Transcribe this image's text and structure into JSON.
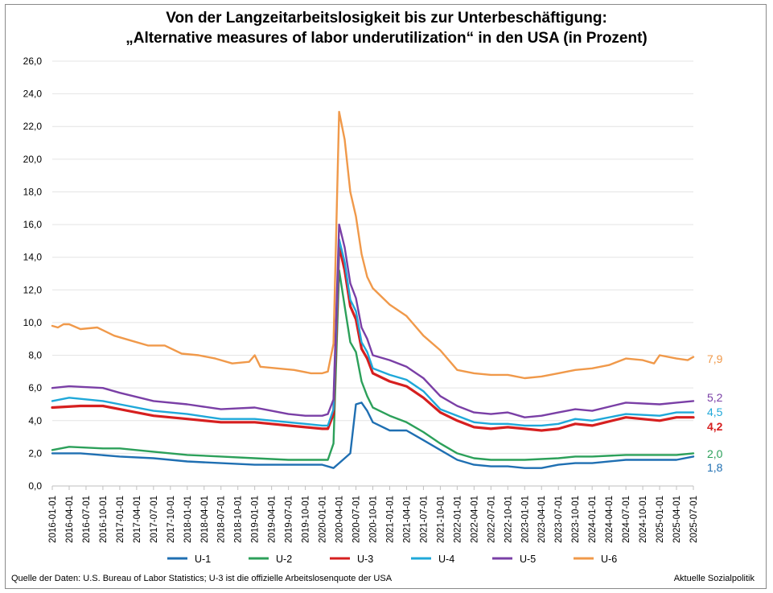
{
  "title_line1": "Von der Langzeitarbeitslosigkeit bis zur Unterbeschäftigung:",
  "title_line2": "„Alternative measures of labor underutilization“ in den USA (in Prozent)",
  "source": "Quelle der Daten: U.S. Bureau of Labor Statistics; U-3 ist die offizielle Arbeitslosenquote der USA",
  "brand": "Aktuelle Sozialpolitik",
  "chart_data": {
    "type": "line",
    "title": "Von der Langzeitarbeitslosigkeit bis zur Unterbeschäftigung: „Alternative measures of labor underutilization“ in den USA (in Prozent)",
    "xlabel": "",
    "ylabel": "",
    "ylim": [
      0,
      26
    ],
    "yticks": [
      "0,0",
      "2,0",
      "4,0",
      "6,0",
      "8,0",
      "10,0",
      "12,0",
      "14,0",
      "16,0",
      "18,0",
      "20,0",
      "22,0",
      "24,0",
      "26,0"
    ],
    "grid": true,
    "legend_position": "bottom",
    "x_start": "2016-01-01",
    "x_end": "2025-07-01",
    "x_ticks": [
      "2016-01-01",
      "2016-04-01",
      "2016-07-01",
      "2016-10-01",
      "2017-01-01",
      "2017-04-01",
      "2017-07-01",
      "2017-10-01",
      "2018-01-01",
      "2018-04-01",
      "2018-07-01",
      "2018-10-01",
      "2019-01-01",
      "2019-04-01",
      "2019-07-01",
      "2019-10-01",
      "2020-01-01",
      "2020-04-01",
      "2020-07-01",
      "2020-10-01",
      "2021-01-01",
      "2021-04-01",
      "2021-07-01",
      "2021-10-01",
      "2022-01-01",
      "2022-04-01",
      "2022-07-01",
      "2022-10-01",
      "2023-01-01",
      "2023-04-01",
      "2023-07-01",
      "2023-10-01",
      "2024-01-01",
      "2024-04-01",
      "2024-07-01",
      "2024-10-01",
      "2025-01-01",
      "2025-04-01",
      "2025-07-01"
    ],
    "series": [
      {
        "name": "U-1",
        "color": "#1f6fb2",
        "end_label": "1,8",
        "points": [
          [
            "2016-01-01",
            2.0
          ],
          [
            "2016-06-01",
            2.0
          ],
          [
            "2017-01-01",
            1.8
          ],
          [
            "2017-07-01",
            1.7
          ],
          [
            "2018-01-01",
            1.5
          ],
          [
            "2018-07-01",
            1.4
          ],
          [
            "2019-01-01",
            1.3
          ],
          [
            "2019-07-01",
            1.3
          ],
          [
            "2020-01-01",
            1.3
          ],
          [
            "2020-03-01",
            1.1
          ],
          [
            "2020-04-01",
            1.4
          ],
          [
            "2020-06-01",
            2.0
          ],
          [
            "2020-07-01",
            5.0
          ],
          [
            "2020-08-01",
            5.1
          ],
          [
            "2020-09-01",
            4.6
          ],
          [
            "2020-10-01",
            3.9
          ],
          [
            "2021-01-01",
            3.4
          ],
          [
            "2021-04-01",
            3.4
          ],
          [
            "2021-07-01",
            2.8
          ],
          [
            "2021-10-01",
            2.2
          ],
          [
            "2022-01-01",
            1.6
          ],
          [
            "2022-04-01",
            1.3
          ],
          [
            "2022-07-01",
            1.2
          ],
          [
            "2022-10-01",
            1.2
          ],
          [
            "2023-01-01",
            1.1
          ],
          [
            "2023-04-01",
            1.1
          ],
          [
            "2023-07-01",
            1.3
          ],
          [
            "2023-10-01",
            1.4
          ],
          [
            "2024-01-01",
            1.4
          ],
          [
            "2024-07-01",
            1.6
          ],
          [
            "2025-01-01",
            1.6
          ],
          [
            "2025-04-01",
            1.6
          ],
          [
            "2025-07-01",
            1.8
          ]
        ]
      },
      {
        "name": "U-2",
        "color": "#2ca05a",
        "end_label": "2,0",
        "points": [
          [
            "2016-01-01",
            2.2
          ],
          [
            "2016-04-01",
            2.4
          ],
          [
            "2016-10-01",
            2.3
          ],
          [
            "2017-01-01",
            2.3
          ],
          [
            "2017-07-01",
            2.1
          ],
          [
            "2018-01-01",
            1.9
          ],
          [
            "2018-07-01",
            1.8
          ],
          [
            "2019-01-01",
            1.7
          ],
          [
            "2019-07-01",
            1.6
          ],
          [
            "2020-01-01",
            1.6
          ],
          [
            "2020-02-01",
            1.6
          ],
          [
            "2020-03-01",
            2.6
          ],
          [
            "2020-04-01",
            13.2
          ],
          [
            "2020-05-01",
            11.0
          ],
          [
            "2020-06-01",
            8.8
          ],
          [
            "2020-07-01",
            8.2
          ],
          [
            "2020-08-01",
            6.4
          ],
          [
            "2020-09-01",
            5.5
          ],
          [
            "2020-10-01",
            4.8
          ],
          [
            "2021-01-01",
            4.3
          ],
          [
            "2021-04-01",
            3.9
          ],
          [
            "2021-07-01",
            3.3
          ],
          [
            "2021-10-01",
            2.6
          ],
          [
            "2022-01-01",
            2.0
          ],
          [
            "2022-04-01",
            1.7
          ],
          [
            "2022-07-01",
            1.6
          ],
          [
            "2022-10-01",
            1.6
          ],
          [
            "2023-01-01",
            1.6
          ],
          [
            "2023-07-01",
            1.7
          ],
          [
            "2023-10-01",
            1.8
          ],
          [
            "2024-01-01",
            1.8
          ],
          [
            "2024-07-01",
            1.9
          ],
          [
            "2025-01-01",
            1.9
          ],
          [
            "2025-04-01",
            1.9
          ],
          [
            "2025-07-01",
            2.0
          ]
        ]
      },
      {
        "name": "U-3",
        "color": "#d61f1f",
        "end_label": "4,2",
        "points": [
          [
            "2016-01-01",
            4.8
          ],
          [
            "2016-06-01",
            4.9
          ],
          [
            "2016-10-01",
            4.9
          ],
          [
            "2017-01-01",
            4.7
          ],
          [
            "2017-07-01",
            4.3
          ],
          [
            "2018-01-01",
            4.1
          ],
          [
            "2018-07-01",
            3.9
          ],
          [
            "2019-01-01",
            3.9
          ],
          [
            "2019-07-01",
            3.7
          ],
          [
            "2019-10-01",
            3.6
          ],
          [
            "2020-01-01",
            3.5
          ],
          [
            "2020-02-01",
            3.5
          ],
          [
            "2020-03-01",
            4.4
          ],
          [
            "2020-04-01",
            14.7
          ],
          [
            "2020-05-01",
            13.2
          ],
          [
            "2020-06-01",
            11.0
          ],
          [
            "2020-07-01",
            10.2
          ],
          [
            "2020-08-01",
            8.4
          ],
          [
            "2020-09-01",
            7.8
          ],
          [
            "2020-10-01",
            6.9
          ],
          [
            "2021-01-01",
            6.4
          ],
          [
            "2021-04-01",
            6.1
          ],
          [
            "2021-07-01",
            5.4
          ],
          [
            "2021-10-01",
            4.5
          ],
          [
            "2022-01-01",
            4.0
          ],
          [
            "2022-04-01",
            3.6
          ],
          [
            "2022-07-01",
            3.5
          ],
          [
            "2022-10-01",
            3.6
          ],
          [
            "2023-01-01",
            3.5
          ],
          [
            "2023-04-01",
            3.4
          ],
          [
            "2023-07-01",
            3.5
          ],
          [
            "2023-10-01",
            3.8
          ],
          [
            "2024-01-01",
            3.7
          ],
          [
            "2024-07-01",
            4.2
          ],
          [
            "2025-01-01",
            4.0
          ],
          [
            "2025-04-01",
            4.2
          ],
          [
            "2025-07-01",
            4.2
          ]
        ]
      },
      {
        "name": "U-4",
        "color": "#1fa8d9",
        "end_label": "4,5",
        "points": [
          [
            "2016-01-01",
            5.2
          ],
          [
            "2016-04-01",
            5.4
          ],
          [
            "2016-10-01",
            5.2
          ],
          [
            "2017-01-01",
            5.0
          ],
          [
            "2017-07-01",
            4.6
          ],
          [
            "2018-01-01",
            4.4
          ],
          [
            "2018-07-01",
            4.1
          ],
          [
            "2019-01-01",
            4.1
          ],
          [
            "2019-07-01",
            3.9
          ],
          [
            "2019-10-01",
            3.8
          ],
          [
            "2020-01-01",
            3.7
          ],
          [
            "2020-02-01",
            3.7
          ],
          [
            "2020-03-01",
            4.7
          ],
          [
            "2020-04-01",
            15.1
          ],
          [
            "2020-05-01",
            13.7
          ],
          [
            "2020-06-01",
            11.4
          ],
          [
            "2020-07-01",
            10.7
          ],
          [
            "2020-08-01",
            8.8
          ],
          [
            "2020-09-01",
            8.2
          ],
          [
            "2020-10-01",
            7.2
          ],
          [
            "2021-01-01",
            6.8
          ],
          [
            "2021-04-01",
            6.5
          ],
          [
            "2021-07-01",
            5.8
          ],
          [
            "2021-10-01",
            4.7
          ],
          [
            "2022-01-01",
            4.3
          ],
          [
            "2022-04-01",
            3.9
          ],
          [
            "2022-07-01",
            3.8
          ],
          [
            "2022-10-01",
            3.8
          ],
          [
            "2023-01-01",
            3.7
          ],
          [
            "2023-04-01",
            3.7
          ],
          [
            "2023-07-01",
            3.8
          ],
          [
            "2023-10-01",
            4.1
          ],
          [
            "2024-01-01",
            4.0
          ],
          [
            "2024-07-01",
            4.4
          ],
          [
            "2025-01-01",
            4.3
          ],
          [
            "2025-04-01",
            4.5
          ],
          [
            "2025-07-01",
            4.5
          ]
        ]
      },
      {
        "name": "U-5",
        "color": "#7a3fa6",
        "end_label": "5,2",
        "points": [
          [
            "2016-01-01",
            6.0
          ],
          [
            "2016-04-01",
            6.1
          ],
          [
            "2016-10-01",
            6.0
          ],
          [
            "2017-01-01",
            5.7
          ],
          [
            "2017-07-01",
            5.2
          ],
          [
            "2018-01-01",
            5.0
          ],
          [
            "2018-07-01",
            4.7
          ],
          [
            "2019-01-01",
            4.8
          ],
          [
            "2019-07-01",
            4.4
          ],
          [
            "2019-10-01",
            4.3
          ],
          [
            "2020-01-01",
            4.3
          ],
          [
            "2020-02-01",
            4.4
          ],
          [
            "2020-03-01",
            5.3
          ],
          [
            "2020-04-01",
            16.0
          ],
          [
            "2020-05-01",
            14.6
          ],
          [
            "2020-06-01",
            12.4
          ],
          [
            "2020-07-01",
            11.5
          ],
          [
            "2020-08-01",
            9.7
          ],
          [
            "2020-09-01",
            9.0
          ],
          [
            "2020-10-01",
            8.0
          ],
          [
            "2021-01-01",
            7.7
          ],
          [
            "2021-04-01",
            7.3
          ],
          [
            "2021-07-01",
            6.6
          ],
          [
            "2021-10-01",
            5.5
          ],
          [
            "2022-01-01",
            4.9
          ],
          [
            "2022-04-01",
            4.5
          ],
          [
            "2022-07-01",
            4.4
          ],
          [
            "2022-10-01",
            4.5
          ],
          [
            "2023-01-01",
            4.2
          ],
          [
            "2023-04-01",
            4.3
          ],
          [
            "2023-07-01",
            4.5
          ],
          [
            "2023-10-01",
            4.7
          ],
          [
            "2024-01-01",
            4.6
          ],
          [
            "2024-07-01",
            5.1
          ],
          [
            "2025-01-01",
            5.0
          ],
          [
            "2025-04-01",
            5.1
          ],
          [
            "2025-07-01",
            5.2
          ]
        ]
      },
      {
        "name": "U-6",
        "color": "#f0994a",
        "end_label": "7,9",
        "points": [
          [
            "2016-01-01",
            9.8
          ],
          [
            "2016-02-01",
            9.7
          ],
          [
            "2016-03-01",
            9.9
          ],
          [
            "2016-04-01",
            9.9
          ],
          [
            "2016-06-01",
            9.6
          ],
          [
            "2016-09-01",
            9.7
          ],
          [
            "2016-12-01",
            9.2
          ],
          [
            "2017-03-01",
            8.9
          ],
          [
            "2017-06-01",
            8.6
          ],
          [
            "2017-09-01",
            8.6
          ],
          [
            "2017-12-01",
            8.1
          ],
          [
            "2018-03-01",
            8.0
          ],
          [
            "2018-06-01",
            7.8
          ],
          [
            "2018-09-01",
            7.5
          ],
          [
            "2018-12-01",
            7.6
          ],
          [
            "2019-01-01",
            8.0
          ],
          [
            "2019-02-01",
            7.3
          ],
          [
            "2019-05-01",
            7.2
          ],
          [
            "2019-08-01",
            7.1
          ],
          [
            "2019-11-01",
            6.9
          ],
          [
            "2020-01-01",
            6.9
          ],
          [
            "2020-02-01",
            7.0
          ],
          [
            "2020-03-01",
            8.7
          ],
          [
            "2020-04-01",
            22.9
          ],
          [
            "2020-05-01",
            21.2
          ],
          [
            "2020-06-01",
            18.0
          ],
          [
            "2020-07-01",
            16.5
          ],
          [
            "2020-08-01",
            14.2
          ],
          [
            "2020-09-01",
            12.8
          ],
          [
            "2020-10-01",
            12.1
          ],
          [
            "2021-01-01",
            11.1
          ],
          [
            "2021-04-01",
            10.4
          ],
          [
            "2021-07-01",
            9.2
          ],
          [
            "2021-10-01",
            8.3
          ],
          [
            "2022-01-01",
            7.1
          ],
          [
            "2022-04-01",
            6.9
          ],
          [
            "2022-07-01",
            6.8
          ],
          [
            "2022-10-01",
            6.8
          ],
          [
            "2023-01-01",
            6.6
          ],
          [
            "2023-04-01",
            6.7
          ],
          [
            "2023-07-01",
            6.9
          ],
          [
            "2023-10-01",
            7.1
          ],
          [
            "2024-01-01",
            7.2
          ],
          [
            "2024-04-01",
            7.4
          ],
          [
            "2024-07-01",
            7.8
          ],
          [
            "2024-10-01",
            7.7
          ],
          [
            "2024-12-01",
            7.5
          ],
          [
            "2025-01-01",
            8.0
          ],
          [
            "2025-04-01",
            7.8
          ],
          [
            "2025-06-01",
            7.7
          ],
          [
            "2025-07-01",
            7.9
          ]
        ]
      }
    ]
  }
}
